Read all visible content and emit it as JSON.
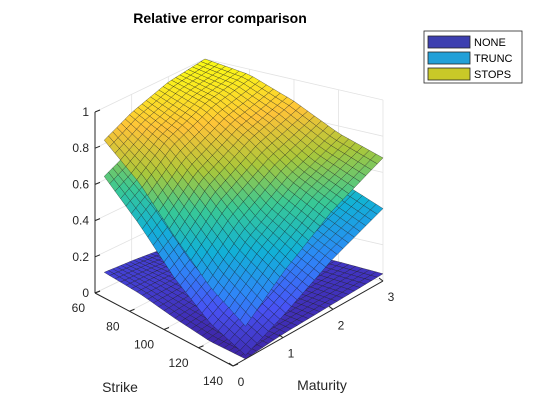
{
  "chart_data": {
    "type": "surface",
    "title": "Relative error comparison",
    "xlabel": "Maturity",
    "ylabel": "Strike",
    "zlabel": "",
    "xlim": [
      0,
      3
    ],
    "ylim": [
      60,
      140
    ],
    "zlim": [
      0,
      1
    ],
    "x_ticks": [
      "0",
      "1",
      "2",
      "3"
    ],
    "y_ticks": [
      "60",
      "80",
      "100",
      "120",
      "140"
    ],
    "z_ticks": [
      "0",
      "0.2",
      "0.4",
      "0.6",
      "0.8",
      "1"
    ],
    "grid": true,
    "colormap": "parula",
    "legend_position": "outside-top-right",
    "series": [
      {
        "name": "NONE",
        "legend_color": "#3d3fb0",
        "maturity": [
          0.25,
          1.0,
          2.0,
          3.0
        ],
        "strike": [
          60,
          80,
          100,
          120,
          140
        ],
        "values": [
          [
            0.09,
            0.08,
            0.06,
            0.05
          ],
          [
            0.07,
            0.07,
            0.06,
            0.05
          ],
          [
            0.03,
            0.05,
            0.05,
            0.05
          ],
          [
            0.0,
            0.03,
            0.04,
            0.05
          ],
          [
            0.0,
            0.02,
            0.03,
            0.04
          ]
        ]
      },
      {
        "name": "TRUNC",
        "legend_color": "#22a0d8",
        "maturity": [
          0.25,
          1.0,
          2.0,
          3.0
        ],
        "strike": [
          60,
          80,
          100,
          120,
          140
        ],
        "values": [
          [
            0.62,
            0.7,
            0.78,
            0.82
          ],
          [
            0.45,
            0.58,
            0.68,
            0.75
          ],
          [
            0.25,
            0.38,
            0.52,
            0.62
          ],
          [
            0.1,
            0.22,
            0.38,
            0.5
          ],
          [
            0.02,
            0.12,
            0.28,
            0.4
          ]
        ]
      },
      {
        "name": "STOPS",
        "legend_color": "#c9c928",
        "maturity": [
          0.25,
          1.0,
          2.0,
          3.0
        ],
        "strike": [
          60,
          80,
          100,
          120,
          140
        ],
        "values": [
          [
            0.82,
            0.9,
            0.97,
            1.0
          ],
          [
            0.68,
            0.82,
            0.92,
            0.97
          ],
          [
            0.48,
            0.66,
            0.8,
            0.88
          ],
          [
            0.3,
            0.48,
            0.65,
            0.76
          ],
          [
            0.18,
            0.36,
            0.55,
            0.68
          ]
        ]
      }
    ]
  }
}
